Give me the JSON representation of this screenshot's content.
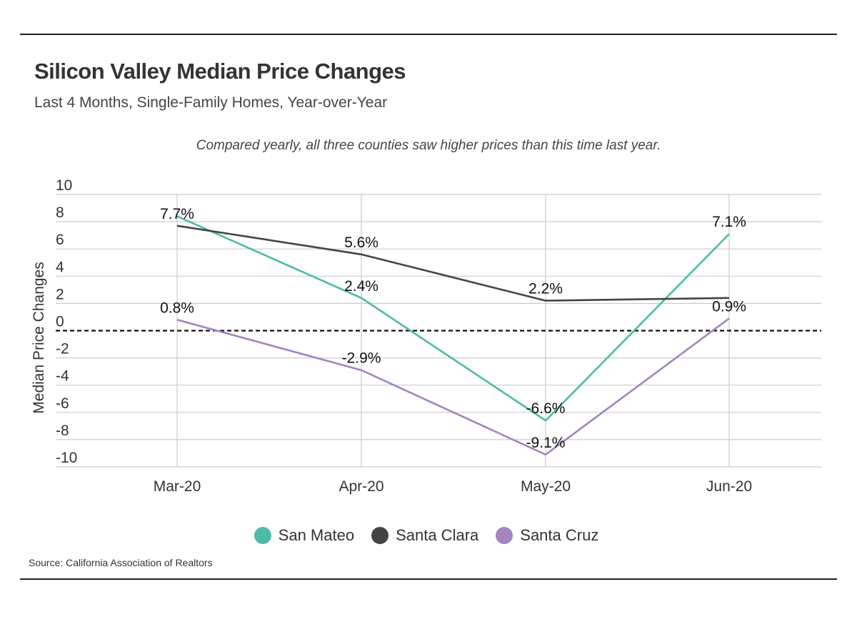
{
  "title": "Silicon Valley Median Price Changes",
  "subtitle": "Last 4 Months, Single-Family Homes, Year-over-Year",
  "annotation": "Compared yearly, all three counties saw higher prices than this time last year.",
  "source": "Source:  California Association of Realtors",
  "chart_data": {
    "type": "line",
    "title": "Silicon Valley Median Price Changes",
    "subtitle": "Last 4 Months, Single-Family Homes, Year-over-Year",
    "xlabel": "",
    "ylabel": "Median Price Changes",
    "categories": [
      "Mar-20",
      "Apr-20",
      "May-20",
      "Jun-20"
    ],
    "ylim": [
      -10,
      10
    ],
    "yticks": [
      10,
      8,
      6,
      4,
      2,
      0,
      -2,
      -4,
      -6,
      -8,
      -10
    ],
    "yticks_labels": [
      "10",
      "8",
      "6",
      "4",
      "2",
      "0",
      "-2",
      "-4",
      "-6",
      "-8",
      "-10"
    ],
    "grid": true,
    "baseline": 0,
    "legend_position": "bottom-center",
    "series": [
      {
        "name": "San Mateo",
        "color": "#4dbaa6",
        "values": [
          8.4,
          2.4,
          -6.6,
          7.1
        ],
        "labels": [
          "",
          "2.4%",
          "-6.6%",
          "7.1%"
        ]
      },
      {
        "name": "Santa Clara",
        "color": "#444444",
        "values": [
          7.7,
          5.6,
          2.2,
          2.4
        ],
        "labels": [
          "7.7%",
          "5.6%",
          "2.2%",
          ""
        ]
      },
      {
        "name": "Santa Cruz",
        "color": "#a384c0",
        "values": [
          0.8,
          -2.9,
          -9.1,
          0.9
        ],
        "labels": [
          "0.8%",
          "-2.9%",
          "-9.1%",
          "0.9%"
        ]
      }
    ]
  }
}
